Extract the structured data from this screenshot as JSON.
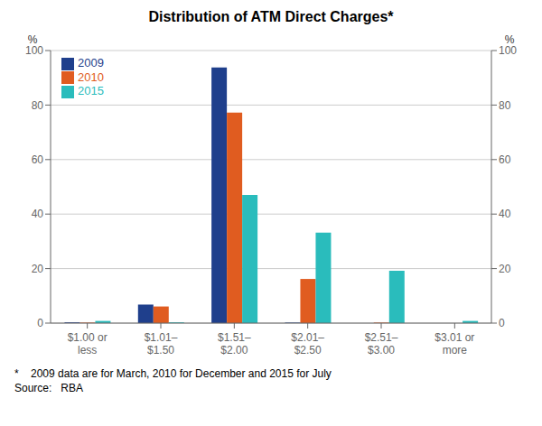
{
  "chart_data": {
    "type": "bar",
    "title": "Distribution of ATM Direct Charges*",
    "categories": [
      "$1.00 or\nless",
      "$1.01–\n$1.50",
      "$1.51–\n$2.00",
      "$2.01–\n$2.50",
      "$2.51–\n$3.00",
      "$3.01 or\nmore"
    ],
    "series": [
      {
        "name": "2009",
        "color": "#1f3f8c",
        "values": [
          0.3,
          6.8,
          93.8,
          0.2,
          0.0,
          0.0
        ]
      },
      {
        "name": "2010",
        "color": "#e05c20",
        "values": [
          0.2,
          6.1,
          77.2,
          16.2,
          0.2,
          0.0
        ]
      },
      {
        "name": "2015",
        "color": "#2abcbc",
        "values": [
          0.8,
          0.3,
          47.0,
          33.2,
          19.2,
          0.8
        ]
      }
    ],
    "ylabel": "%",
    "y2label": "%",
    "ylim": [
      0,
      100
    ],
    "yticks": [
      0,
      20,
      40,
      60,
      80,
      100
    ],
    "y2lim": [
      0,
      100
    ],
    "y2ticks": [
      0,
      20,
      40,
      60,
      80,
      100
    ],
    "grid": true,
    "legend": "upper left",
    "annotations": [
      "*    2009 data are for March, 2010 for December and 2015 for July",
      "Source:   RBA"
    ]
  }
}
